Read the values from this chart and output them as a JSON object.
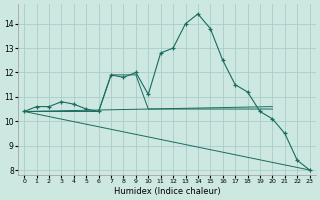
{
  "xlabel": "Humidex (Indice chaleur)",
  "bg_color": "#cce8e0",
  "grid_color": "#aacccc",
  "line_color": "#1a6b60",
  "xlim": [
    -0.5,
    23.5
  ],
  "ylim": [
    7.8,
    14.8
  ],
  "yticks": [
    8,
    9,
    10,
    11,
    12,
    13,
    14
  ],
  "xticks": [
    0,
    1,
    2,
    3,
    4,
    5,
    6,
    7,
    8,
    9,
    10,
    11,
    12,
    13,
    14,
    15,
    16,
    17,
    18,
    19,
    20,
    21,
    22,
    23
  ],
  "main_line": {
    "x": [
      0,
      1,
      2,
      3,
      4,
      5,
      6,
      7,
      8,
      9,
      10,
      11,
      12,
      13,
      14,
      15,
      16,
      17,
      18,
      19,
      20,
      21,
      22,
      23
    ],
    "y": [
      10.4,
      10.6,
      10.6,
      10.8,
      10.7,
      10.5,
      10.4,
      11.9,
      11.8,
      12.0,
      11.1,
      12.8,
      13.0,
      14.0,
      14.4,
      13.8,
      12.5,
      11.5,
      11.2,
      10.4,
      10.1,
      9.5,
      8.4,
      8.0
    ]
  },
  "extra_lines": [
    {
      "x": [
        0,
        6,
        7,
        9,
        10,
        20
      ],
      "y": [
        10.4,
        10.4,
        11.9,
        11.9,
        10.5,
        10.5
      ]
    },
    {
      "x": [
        0,
        20
      ],
      "y": [
        10.4,
        10.6
      ]
    },
    {
      "x": [
        0,
        23
      ],
      "y": [
        10.4,
        8.0
      ]
    }
  ]
}
